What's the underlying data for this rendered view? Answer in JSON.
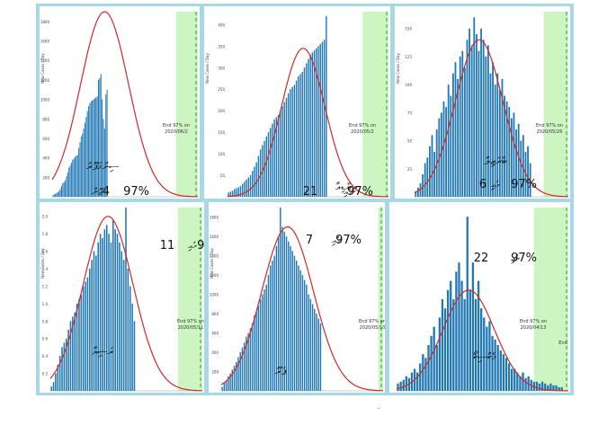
{
  "figure": {
    "colors": {
      "bar": "#1f77b4",
      "curve": "#d62728",
      "band": "#cdf5c2",
      "band_line": "#2ca02c",
      "frame": "#a7d8e6"
    },
    "footer_mark": "ހ"
  },
  "chart_data": [
    {
      "type": "bar",
      "ylabel": "New Cases / Day",
      "yticks": [
        "1800",
        "1600",
        "1400",
        "1200",
        "1000",
        "800",
        "600",
        "400",
        "200"
      ],
      "ylim": [
        0,
        1900
      ],
      "end_label": [
        "End 97% on",
        "2020/06/2"
      ],
      "thaana_name": "ސިންގަޕޫރު",
      "thaana_day": "ޖޫން",
      "day_number": "4",
      "percent": "97%",
      "band_start": 0.85,
      "bars_end": 0.38,
      "values": [
        15,
        25,
        30,
        40,
        45,
        60,
        80,
        110,
        140,
        150,
        170,
        210,
        250,
        300,
        320,
        350,
        380,
        390,
        410,
        420,
        430,
        500,
        560,
        620,
        650,
        700,
        760,
        820,
        880,
        930,
        960,
        980,
        990,
        1000,
        1010,
        1020,
        1030,
        1200,
        1220,
        1260,
        1000,
        800,
        700,
        1050,
        1100
      ],
      "curve": {
        "peak": 1900,
        "center": 0.36,
        "sigma": 0.165
      }
    },
    {
      "type": "bar",
      "ylabel": "New Cases / Day",
      "yticks": [
        "400",
        "350",
        "300",
        "250",
        "200",
        "150",
        "100",
        "50"
      ],
      "ylim": [
        0,
        430
      ],
      "end_label": [
        "End 97% on",
        "2020/05/2"
      ],
      "thaana_name": "އިންޑިއާ",
      "thaana_day": "މެއި",
      "day_number": "21",
      "percent": "97%",
      "band_start": 0.84,
      "bars_end": 0.62,
      "values": [
        10,
        12,
        14,
        18,
        20,
        22,
        25,
        30,
        35,
        40,
        45,
        50,
        60,
        70,
        80,
        95,
        110,
        120,
        130,
        140,
        150,
        160,
        170,
        180,
        185,
        190,
        200,
        210,
        220,
        230,
        240,
        250,
        255,
        260,
        270,
        280,
        285,
        290,
        300,
        310,
        320,
        330,
        335,
        340,
        345,
        350,
        355,
        360,
        365,
        420
      ],
      "curve": {
        "peak": 345,
        "center": 0.47,
        "sigma": 0.135
      }
    },
    {
      "type": "bar",
      "ylabel": "New Cases / Day",
      "yticks": [
        "150",
        "125",
        "100",
        "75",
        "50",
        "25"
      ],
      "ylim": [
        0,
        165
      ],
      "end_label": [
        "End 97% on",
        "2020/05/26"
      ],
      "thaana_name": "ބްރެޒިލް",
      "thaana_day": "މެއި",
      "day_number": "6",
      "percent": "97%",
      "band_start": 0.84,
      "bars_end": 0.76,
      "values": [
        5,
        8,
        12,
        20,
        30,
        35,
        45,
        55,
        40,
        60,
        70,
        75,
        85,
        80,
        100,
        90,
        110,
        120,
        105,
        125,
        130,
        115,
        140,
        150,
        135,
        160,
        145,
        130,
        150,
        140,
        125,
        135,
        110,
        120,
        100,
        110,
        95,
        105,
        90,
        85,
        80,
        70,
        75,
        60,
        65,
        50,
        55,
        40,
        45,
        30
      ],
      "curve": {
        "peak": 140,
        "center": 0.42,
        "sigma": 0.155
      }
    },
    {
      "type": "bar",
      "ylabel": "New Cases / Day",
      "yticks": [
        "2.0",
        "1.8",
        "1.6",
        "1.4",
        "1.2",
        "1.0",
        "0.8",
        "0.6",
        "0.4",
        "0.2"
      ],
      "ylim": [
        0,
        2.1
      ],
      "end_label": [
        "End 97% on",
        "2020/05/11"
      ],
      "thaana_name": "ރަޝިޔާ",
      "thaana_day": "މެއި",
      "day_number": "11",
      "percent": "97%",
      "band_start": 0.84,
      "bars_end": 0.56,
      "values": [
        0.05,
        0.1,
        0.2,
        0.3,
        0.4,
        0.5,
        0.55,
        0.6,
        0.7,
        0.8,
        0.85,
        0.9,
        1.0,
        1.05,
        1.1,
        1.2,
        1.25,
        1.3,
        1.4,
        1.5,
        1.6,
        1.55,
        1.7,
        1.8,
        1.75,
        1.85,
        1.9,
        1.8,
        1.7,
        1.95,
        1.85,
        1.8,
        1.7,
        1.6,
        1.5,
        2.1,
        1.4,
        1.2,
        1.0,
        0.8
      ],
      "curve": {
        "peak": 2.0,
        "center": 0.38,
        "sigma": 0.165
      }
    },
    {
      "type": "bar",
      "ylabel": "New Cases / Day",
      "yticks": [
        "1800",
        "1600",
        "1400",
        "1200",
        "1000",
        "800",
        "600",
        "400",
        "200"
      ],
      "ylim": [
        0,
        1900
      ],
      "end_label": [
        "End 97% on",
        "2020/05/10"
      ],
      "thaana_name": "ޕެރޫ",
      "thaana_day": "މެއި",
      "day_number": "7",
      "percent": "97%",
      "band_start": 0.97,
      "bars_end": 0.62,
      "values": [
        40,
        80,
        100,
        150,
        180,
        220,
        260,
        300,
        350,
        400,
        450,
        500,
        560,
        600,
        650,
        700,
        780,
        820,
        880,
        950,
        1000,
        1050,
        1100,
        1200,
        1300,
        1350,
        1400,
        1500,
        1600,
        1900,
        1700,
        1650,
        1600,
        1550,
        1500,
        1450,
        1400,
        1350,
        1300,
        1250,
        1200,
        1150,
        1100,
        1000,
        950,
        900,
        850,
        800,
        750,
        700
      ],
      "curve": {
        "peak": 1700,
        "center": 0.41,
        "sigma": 0.16
      }
    },
    {
      "type": "bar",
      "ylabel": "",
      "yticks": [],
      "ylim": [
        0,
        1
      ],
      "end_label": [
        "End 97% on",
        "2020/04/13"
      ],
      "thaana_name": "މެކްސިކޯ",
      "thaana_day": "މެއި",
      "day_number": "22",
      "percent": "97%",
      "band_start": 0.8,
      "bars_end": 0.97,
      "extra_label": "End",
      "values": [
        0.04,
        0.05,
        0.06,
        0.08,
        0.07,
        0.1,
        0.12,
        0.1,
        0.15,
        0.2,
        0.18,
        0.25,
        0.3,
        0.35,
        0.25,
        0.4,
        0.5,
        0.45,
        0.55,
        0.6,
        0.5,
        0.65,
        0.7,
        0.6,
        0.5,
        0.95,
        0.55,
        0.7,
        0.5,
        0.6,
        0.45,
        0.4,
        0.35,
        0.38,
        0.3,
        0.28,
        0.25,
        0.22,
        0.2,
        0.18,
        0.15,
        0.12,
        0.12,
        0.1,
        0.08,
        0.1,
        0.07,
        0.08,
        0.06,
        0.05,
        0.05,
        0.04,
        0.05,
        0.04,
        0.03,
        0.04,
        0.03,
        0.03,
        0.02,
        0.02
      ],
      "curve": {
        "peak": 0.55,
        "center": 0.42,
        "sigma": 0.15
      }
    }
  ]
}
